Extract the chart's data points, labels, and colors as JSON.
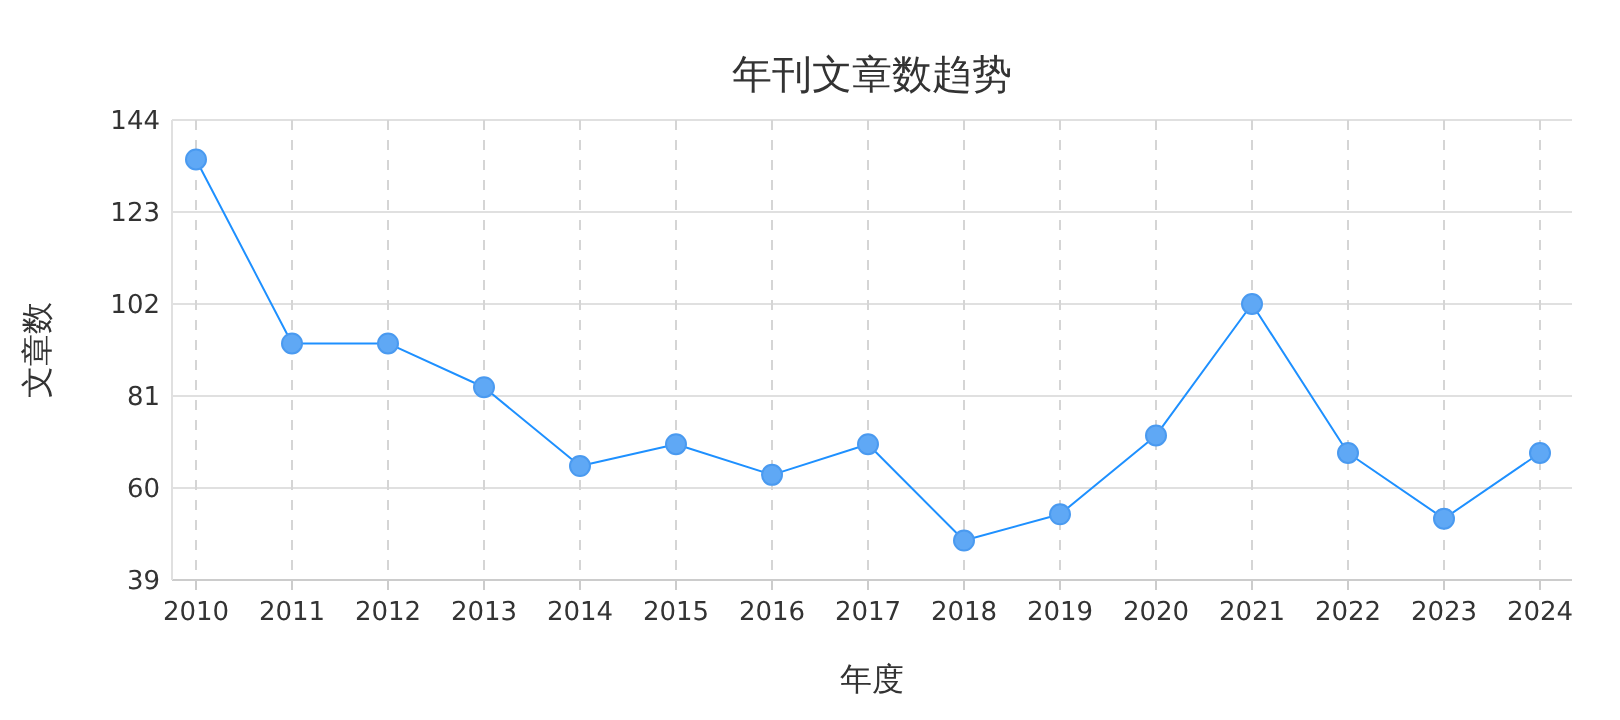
{
  "chart_data": {
    "type": "line",
    "title": "年刊文章数趋势",
    "xlabel": "年度",
    "ylabel": "文章数",
    "categories": [
      "2010",
      "2011",
      "2012",
      "2013",
      "2014",
      "2015",
      "2016",
      "2017",
      "2018",
      "2019",
      "2020",
      "2021",
      "2022",
      "2023",
      "2024"
    ],
    "series": [
      {
        "color": "#1e90ff",
        "values": [
          135,
          93,
          93,
          83,
          65,
          70,
          63,
          70,
          48,
          54,
          72,
          102,
          68,
          53,
          68
        ]
      }
    ],
    "ylim": [
      39,
      144
    ],
    "yticks": [
      39,
      60,
      81,
      102,
      123,
      144
    ],
    "grid": true,
    "marker": "circle",
    "line_style": "solid"
  }
}
